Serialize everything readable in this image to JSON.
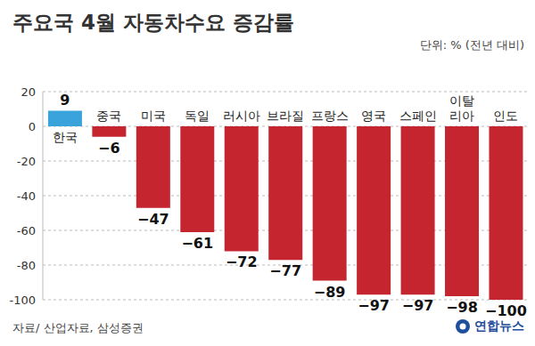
{
  "chart_data": {
    "type": "bar",
    "title": "주요국 4월 자동차수요 증감률",
    "subtitle": "단위: % (전년 대비)",
    "source": "자료/ 산업자료, 삼성증권",
    "credit": "연합뉴스",
    "categories": [
      "한국",
      "중국",
      "미국",
      "독일",
      "러시아",
      "브라질",
      "프랑스",
      "영국",
      "스페인",
      "이탈리아",
      "인도"
    ],
    "values": [
      9,
      -6,
      -47,
      -61,
      -72,
      -77,
      -89,
      -97,
      -97,
      -98,
      -100
    ],
    "value_labels": [
      "9",
      "−6",
      "−47",
      "−61",
      "−72",
      "−77",
      "−89",
      "−97",
      "−97",
      "−98",
      "−100"
    ],
    "colors": [
      "#3ba3dc",
      "#c5252f",
      "#c5252f",
      "#c5252f",
      "#c5252f",
      "#c5252f",
      "#c5252f",
      "#c5252f",
      "#c5252f",
      "#c5252f",
      "#c5252f"
    ],
    "ylim": [
      -100,
      20
    ],
    "yticks": [
      -100,
      -80,
      -60,
      -40,
      -20,
      0,
      20
    ],
    "grid": true,
    "data_labels": true
  }
}
